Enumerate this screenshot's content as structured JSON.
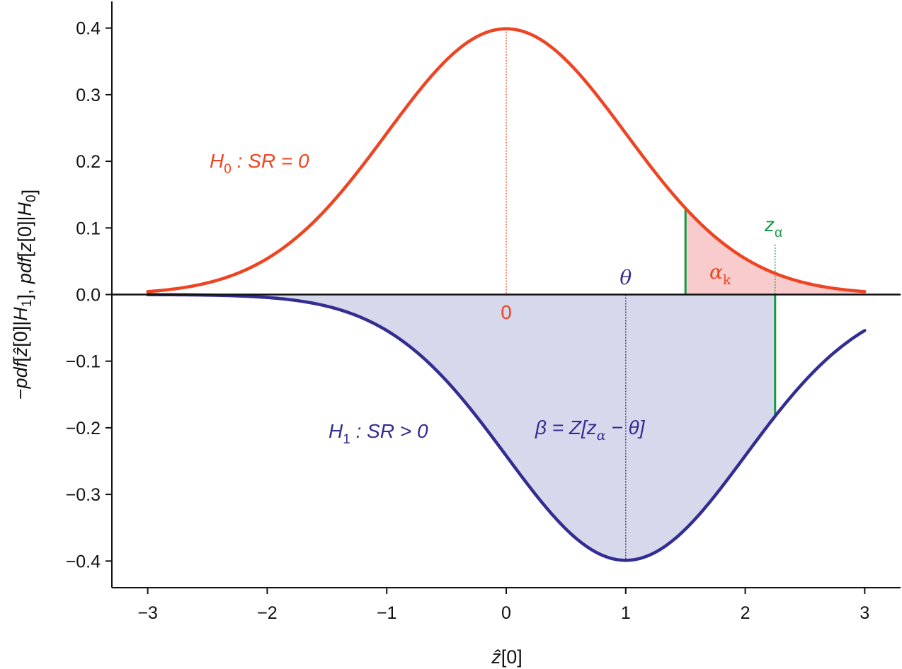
{
  "colors": {
    "h0": "#ee4422",
    "h0_fill": "#f8cccc",
    "h1": "#332d92",
    "h1_fill": "#d6d8ec",
    "threshold": "#119944",
    "axis": "#111111"
  },
  "chart_data": {
    "type": "line",
    "xlim": [
      -3.3,
      3.3
    ],
    "ylim": [
      -0.44,
      0.44
    ],
    "xticks": [
      -3,
      -2,
      -1,
      0,
      1,
      2,
      3
    ],
    "xtick_labels": [
      "−3",
      "−2",
      "−1",
      "0",
      "1",
      "2",
      "3"
    ],
    "yticks": [
      0.4,
      0.3,
      0.2,
      0.1,
      0.0,
      -0.1,
      -0.2,
      -0.3,
      -0.4
    ],
    "ytick_labels": [
      "0.4",
      "0.3",
      "0.2",
      "0.1",
      "0.0",
      "−0.1",
      "−0.2",
      "−0.3",
      "−0.4"
    ],
    "xlabel": "ẑ[0]",
    "ylabel": "−pdf[ẑ[0]|H1], pdf[z[0]|H0]",
    "grid": false,
    "series": [
      {
        "name": "H0 : SR = 0",
        "mean": 0,
        "sd": 1,
        "sign": 1,
        "x_range": [
          -3,
          3
        ]
      },
      {
        "name": "H1 : SR > 0",
        "mean": 1,
        "sd": 1,
        "sign": -1,
        "x_range": [
          -3,
          3
        ]
      }
    ],
    "shaded_regions": [
      {
        "curve": "H0",
        "from": 1.5,
        "to": 3,
        "label": "α_k"
      },
      {
        "curve": "H1",
        "from": -3,
        "to": 2.25,
        "label": "β = Z[z_α − θ]"
      }
    ],
    "vertical_lines": [
      {
        "x": 0,
        "label": "0"
      },
      {
        "x": 1,
        "label": "θ"
      },
      {
        "x": 1.5,
        "label": ""
      },
      {
        "x": 2.25,
        "label": "z_α"
      }
    ]
  },
  "annotations": {
    "h0_label": {
      "main": "H",
      "sub": "0",
      "rest": " : SR = 0"
    },
    "h1_label": {
      "main": "H",
      "sub": "1",
      "rest": " : SR > 0"
    },
    "alpha_k": {
      "main": "α",
      "sub": "k"
    },
    "z_alpha": {
      "main": "z",
      "sub": "α"
    },
    "theta": "θ",
    "zero": "0",
    "beta": {
      "lhs": "β = Z[z",
      "sub": "α",
      "rhs": " − θ]"
    }
  }
}
